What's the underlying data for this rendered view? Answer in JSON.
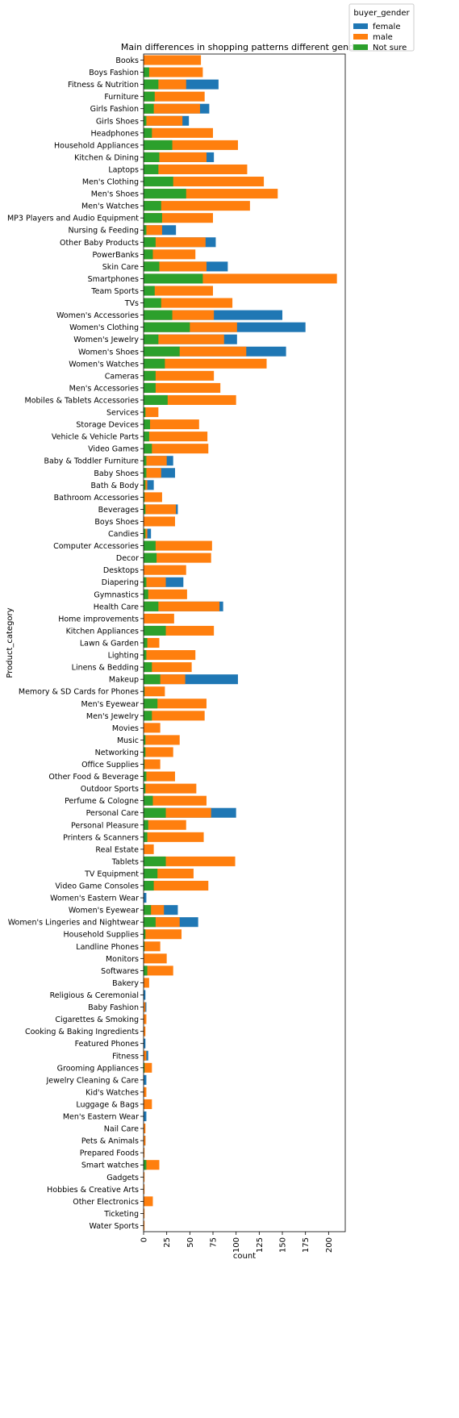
{
  "chart_data": {
    "type": "bar",
    "orientation": "horizontal",
    "title": "Main differences in shopping patterns different genders",
    "x_label": "count",
    "y_label": "Product_category",
    "legend_title": "buyer_gender",
    "legend_position": "upper right outside",
    "xlim": [
      0,
      218
    ],
    "xticks": [
      0,
      25,
      50,
      75,
      100,
      125,
      150,
      175,
      200
    ],
    "categories": [
      "Books",
      "Boys Fashion",
      "Fitness & Nutrition",
      "Furniture",
      "Girls Fashion",
      "Girls Shoes",
      "Headphones",
      "Household Appliances",
      "Kitchen & Dining",
      "Laptops",
      "Men's Clothing",
      "Men's Shoes",
      "Men's Watches",
      "MP3 Players and Audio Equipment",
      "Nursing & Feeding",
      "Other Baby Products",
      "PowerBanks",
      "Skin Care",
      "Smartphones",
      "Team Sports",
      "TVs",
      "Women's Accessories",
      "Women's Clothing",
      "Women's Jewelry",
      "Women's Shoes",
      "Women's Watches",
      "Cameras",
      "Men's Accessories",
      "Mobiles & Tablets Accessories",
      "Services",
      "Storage Devices",
      "Vehicle & Vehicle Parts",
      "Video Games",
      "Baby & Toddler Furniture",
      "Baby Shoes",
      "Bath & Body",
      "Bathroom Accessories",
      "Beverages",
      "Boys Shoes",
      "Candies",
      "Computer Accessories",
      "Decor",
      "Desktops",
      "Diapering",
      "Gymnastics",
      "Health Care",
      "Home improvements",
      "Kitchen Appliances",
      "Lawn & Garden",
      "Lighting",
      "Linens & Bedding",
      "Makeup",
      "Memory & SD Cards for Phones",
      "Men's Eyewear",
      "Men's Jewelry",
      "Movies",
      "Music",
      "Networking",
      "Office Supplies",
      "Other Food & Beverage",
      "Outdoor Sports",
      "Perfume & Cologne",
      "Personal Care",
      "Personal Pleasure",
      "Printers & Scanners",
      "Real Estate",
      "Tablets",
      "TV Equipment",
      "Video Game Consoles",
      "Women's Eastern Wear",
      "Women's Eyewear",
      "Women's Lingeries and Nightwear",
      "Household Supplies",
      "Landline Phones",
      "Monitors",
      "Softwares",
      "Bakery",
      "Religious & Ceremonial",
      "Baby Fashion",
      "Cigarettes & Smoking",
      "Cooking & Baking Ingredients",
      "Featured Phones",
      "Fitness",
      "Grooming Appliances",
      "Jewelry Cleaning & Care",
      "Kid's Watches",
      "Luggage & Bags",
      "Men's Eastern Wear",
      "Nail Care",
      "Pets & Animals",
      "Prepared Foods",
      "Smart watches",
      "Gadgets",
      "Hobbies & Creative Arts",
      "Other Electronics",
      "Ticketing",
      "Water Sports"
    ],
    "series": [
      {
        "name": "female",
        "color": "#1f77b4",
        "values": [
          null,
          null,
          81,
          null,
          71,
          49,
          null,
          null,
          76,
          null,
          null,
          null,
          null,
          null,
          35,
          78,
          null,
          91,
          null,
          null,
          null,
          150,
          175,
          101,
          154,
          null,
          null,
          null,
          null,
          null,
          null,
          null,
          null,
          32,
          34,
          11,
          null,
          37,
          null,
          8,
          null,
          null,
          null,
          43,
          null,
          86,
          null,
          null,
          null,
          null,
          null,
          102,
          null,
          null,
          null,
          null,
          null,
          null,
          null,
          null,
          null,
          null,
          100,
          null,
          null,
          null,
          null,
          null,
          null,
          3,
          37,
          59,
          null,
          null,
          null,
          null,
          null,
          2,
          3,
          null,
          null,
          2,
          5,
          null,
          3,
          null,
          null,
          3,
          null,
          2,
          null,
          null,
          null,
          null,
          null,
          null,
          null
        ]
      },
      {
        "name": "male",
        "color": "#ff7f0e",
        "values": [
          62,
          64,
          46,
          66,
          61,
          42,
          75,
          102,
          68,
          112,
          130,
          145,
          115,
          75,
          20,
          67,
          56,
          68,
          209,
          75,
          96,
          76,
          101,
          87,
          111,
          133,
          76,
          83,
          100,
          16,
          60,
          69,
          70,
          25,
          19,
          4,
          20,
          35,
          34,
          4,
          74,
          73,
          46,
          24,
          47,
          82,
          33,
          76,
          17,
          56,
          52,
          45,
          23,
          68,
          66,
          18,
          39,
          32,
          18,
          34,
          57,
          68,
          73,
          46,
          65,
          11,
          99,
          54,
          70,
          null,
          22,
          39,
          41,
          18,
          25,
          32,
          6,
          null,
          2,
          3,
          2,
          null,
          3,
          9,
          null,
          3,
          9,
          null,
          2,
          2,
          1,
          17,
          1,
          1,
          10,
          1,
          1
        ]
      },
      {
        "name": "Not sure",
        "color": "#2ca02c",
        "values": [
          null,
          6,
          16,
          12,
          11,
          3,
          9,
          31,
          17,
          16,
          32,
          46,
          19,
          20,
          3,
          13,
          10,
          17,
          64,
          12,
          19,
          31,
          50,
          16,
          39,
          23,
          13,
          13,
          26,
          2,
          7,
          6,
          9,
          3,
          3,
          2,
          1,
          2,
          null,
          2,
          13,
          14,
          null,
          3,
          5,
          16,
          null,
          24,
          4,
          3,
          9,
          18,
          1,
          15,
          9,
          null,
          2,
          2,
          1,
          3,
          2,
          10,
          24,
          5,
          4,
          null,
          24,
          15,
          11,
          null,
          8,
          13,
          2,
          1,
          null,
          4,
          null,
          null,
          null,
          null,
          null,
          null,
          null,
          1,
          null,
          null,
          null,
          null,
          null,
          null,
          null,
          3,
          null,
          null,
          null,
          null,
          null
        ]
      }
    ]
  }
}
